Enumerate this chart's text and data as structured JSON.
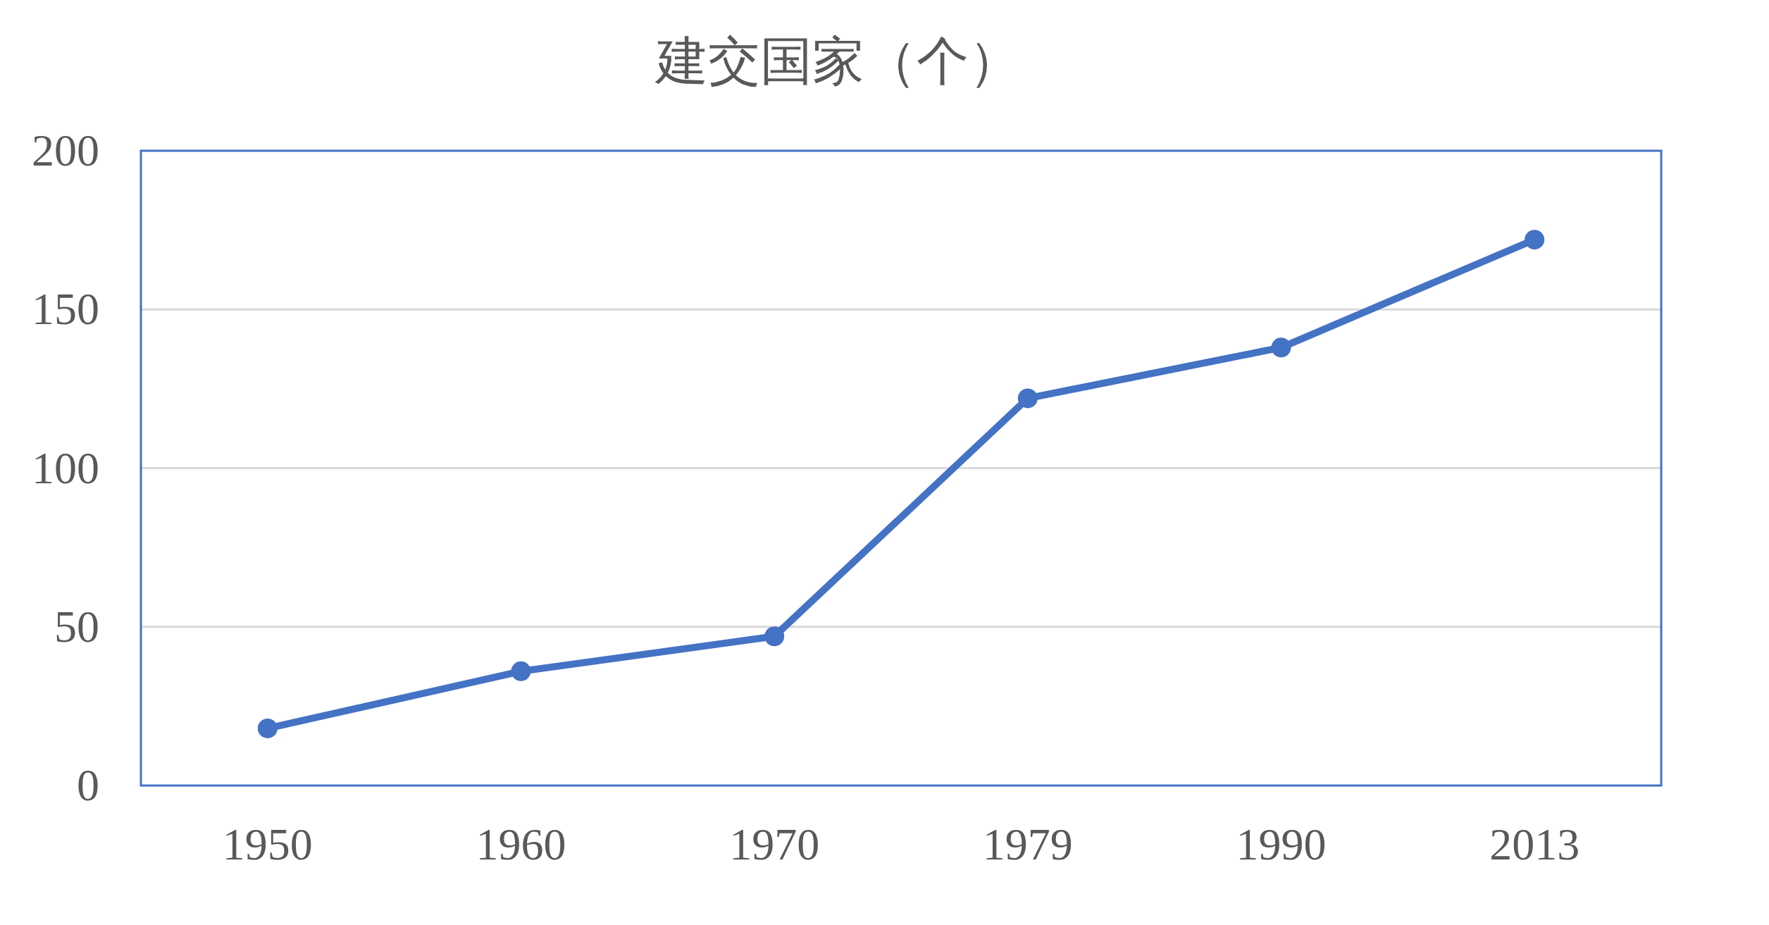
{
  "chart_data": {
    "type": "line",
    "title": "建交国家（个）",
    "categories": [
      "1950",
      "1960",
      "1970",
      "1979",
      "1990",
      "2013"
    ],
    "values": [
      18,
      36,
      47,
      122,
      138,
      172
    ],
    "color": "#4472c4",
    "ylim": [
      0,
      200
    ],
    "yticks": [
      0,
      50,
      100,
      150,
      200
    ],
    "grid": "y",
    "marker": "circle",
    "line_style": "solid"
  }
}
